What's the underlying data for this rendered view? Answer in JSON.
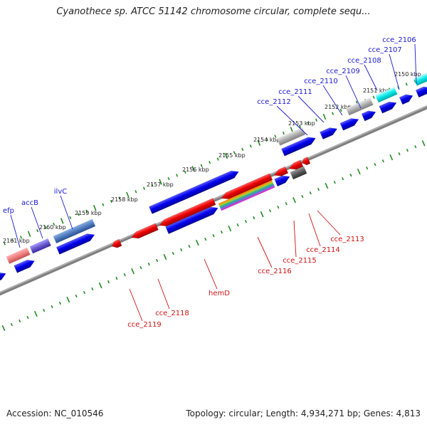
{
  "title": "Cyanothece sp. ATCC 51142 chromosome circular, complete sequ...",
  "footer": {
    "accession": "Accession: NC_010546",
    "summary": "Topology: circular; Length: 4,934,271 bp; Genes: 4,813"
  },
  "colors": {
    "forward_label": "#1a1acc",
    "reverse_label": "#cc1111",
    "backbone": "#808080",
    "tick": "#228b22"
  },
  "kbp_labels": [
    "2150 kbp",
    "2151 kbp",
    "2152 kbp",
    "2153 kbp",
    "2154 kbp",
    "2155 kbp",
    "2156 kbp",
    "2157 kbp",
    "2158 kbp",
    "2159 kbp",
    "2160 kbp",
    "2161 kbp"
  ],
  "forward_genes": [
    "cce_2106",
    "cce_2107",
    "cce_2108",
    "cce_2109",
    "cce_2110",
    "cce_2111",
    "cce_2112",
    "ilvC",
    "accB",
    "efp"
  ],
  "reverse_genes": [
    "cce_2113",
    "cce_2114",
    "cce_2115",
    "cce_2116",
    "hemD",
    "cce_2118",
    "cce_2119"
  ]
}
